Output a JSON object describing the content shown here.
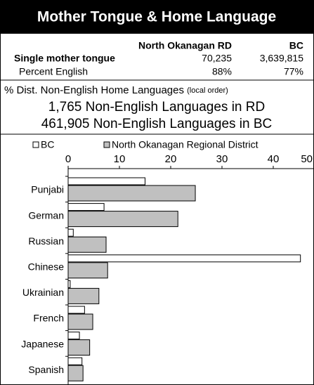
{
  "header": {
    "title": "Mother Tongue & Home Language"
  },
  "table": {
    "columns": [
      "North Okanagan RD",
      "BC"
    ],
    "rows": [
      [
        "Single mother tongue",
        "70,235",
        "3,639,815"
      ],
      [
        "Percent English",
        "88%",
        "77%"
      ]
    ]
  },
  "summary": {
    "heading": "% Dist. Non-English Home Languages",
    "heading_note": "(local order)",
    "lines": [
      "1,765 Non-English Languages in RD",
      "461,905 Non-English Languages in BC"
    ]
  },
  "chart_data": {
    "type": "hbar",
    "categories": [
      "Punjabi",
      "German",
      "Russian",
      "Chinese",
      "Ukrainian",
      "French",
      "Japanese",
      "Spanish"
    ],
    "series": [
      {
        "name": "BC",
        "color": "#ffffff",
        "values": [
          15,
          7,
          1,
          45.3,
          0.4,
          3.2,
          2.2,
          2.7
        ]
      },
      {
        "name": "North Okanagan Regional District",
        "color": "#c0c0c0",
        "values": [
          24.8,
          21.4,
          7.4,
          7.7,
          6,
          4.8,
          4.2,
          2.9
        ]
      }
    ],
    "xlim": [
      0,
      50
    ],
    "xticks": [
      0,
      10,
      20,
      30,
      40,
      50
    ]
  }
}
